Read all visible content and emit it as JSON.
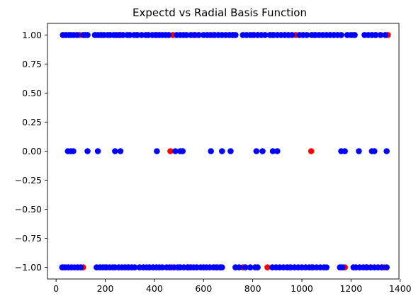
{
  "chart_data": {
    "type": "scatter",
    "title": "Expectd vs Radial Basis Function",
    "xlabel": "",
    "ylabel": "",
    "xlim": [
      -35,
      1395
    ],
    "ylim": [
      -1.1,
      1.1
    ],
    "xticks": [
      0,
      200,
      400,
      600,
      800,
      1000,
      1200,
      1400
    ],
    "xtick_labels": [
      "0",
      "200",
      "400",
      "600",
      "800",
      "1000",
      "1200",
      "1400"
    ],
    "yticks": [
      1.0,
      0.75,
      0.5,
      0.25,
      0.0,
      -0.25,
      -0.5,
      -0.75,
      -1.0
    ],
    "ytick_labels": [
      "1.00",
      "0.75",
      "0.50",
      "0.25",
      "0.00",
      "−0.25",
      "−0.50",
      "−0.75",
      "−1.00"
    ],
    "grid": false,
    "series": [
      {
        "color": "#ff0000",
        "points": [
          [
            28,
            1
          ],
          [
            95,
            1
          ],
          [
            180,
            1
          ],
          [
            255,
            1
          ],
          [
            330,
            1
          ],
          [
            410,
            1
          ],
          [
            475,
            1
          ],
          [
            560,
            1
          ],
          [
            640,
            1
          ],
          [
            720,
            1
          ],
          [
            800,
            1
          ],
          [
            880,
            1
          ],
          [
            975,
            1
          ],
          [
            1050,
            1
          ],
          [
            1130,
            1
          ],
          [
            1210,
            1
          ],
          [
            1300,
            1
          ],
          [
            1350,
            1
          ],
          [
            465,
            0
          ],
          [
            1038,
            0
          ],
          [
            30,
            -1
          ],
          [
            110,
            -1
          ],
          [
            200,
            -1
          ],
          [
            290,
            -1
          ],
          [
            380,
            -1
          ],
          [
            470,
            -1
          ],
          [
            540,
            -1
          ],
          [
            650,
            -1
          ],
          [
            760,
            -1
          ],
          [
            860,
            -1
          ],
          [
            950,
            -1
          ],
          [
            1040,
            -1
          ],
          [
            1175,
            -1
          ],
          [
            1260,
            -1
          ],
          [
            1335,
            -1
          ]
        ]
      },
      {
        "color": "#0000ff",
        "points": [
          [
            28,
            1
          ],
          [
            40,
            1
          ],
          [
            52,
            1
          ],
          [
            60,
            1
          ],
          [
            72,
            1
          ],
          [
            85,
            1
          ],
          [
            110,
            1
          ],
          [
            118,
            1
          ],
          [
            128,
            1
          ],
          [
            158,
            1
          ],
          [
            170,
            1
          ],
          [
            185,
            1
          ],
          [
            195,
            1
          ],
          [
            210,
            1
          ],
          [
            220,
            1
          ],
          [
            235,
            1
          ],
          [
            245,
            1
          ],
          [
            260,
            1
          ],
          [
            272,
            1
          ],
          [
            290,
            1
          ],
          [
            300,
            1
          ],
          [
            318,
            1
          ],
          [
            330,
            1
          ],
          [
            348,
            1
          ],
          [
            365,
            1
          ],
          [
            375,
            1
          ],
          [
            392,
            1
          ],
          [
            405,
            1
          ],
          [
            420,
            1
          ],
          [
            432,
            1
          ],
          [
            445,
            1
          ],
          [
            458,
            1
          ],
          [
            490,
            1
          ],
          [
            505,
            1
          ],
          [
            518,
            1
          ],
          [
            530,
            1
          ],
          [
            548,
            1
          ],
          [
            565,
            1
          ],
          [
            580,
            1
          ],
          [
            600,
            1
          ],
          [
            615,
            1
          ],
          [
            628,
            1
          ],
          [
            645,
            1
          ],
          [
            660,
            1
          ],
          [
            675,
            1
          ],
          [
            690,
            1
          ],
          [
            705,
            1
          ],
          [
            718,
            1
          ],
          [
            730,
            1
          ],
          [
            760,
            1
          ],
          [
            775,
            1
          ],
          [
            790,
            1
          ],
          [
            805,
            1
          ],
          [
            820,
            1
          ],
          [
            835,
            1
          ],
          [
            850,
            1
          ],
          [
            870,
            1
          ],
          [
            885,
            1
          ],
          [
            900,
            1
          ],
          [
            915,
            1
          ],
          [
            930,
            1
          ],
          [
            945,
            1
          ],
          [
            960,
            1
          ],
          [
            990,
            1
          ],
          [
            1005,
            1
          ],
          [
            1020,
            1
          ],
          [
            1040,
            1
          ],
          [
            1055,
            1
          ],
          [
            1070,
            1
          ],
          [
            1085,
            1
          ],
          [
            1100,
            1
          ],
          [
            1115,
            1
          ],
          [
            1130,
            1
          ],
          [
            1145,
            1
          ],
          [
            1160,
            1
          ],
          [
            1185,
            1
          ],
          [
            1200,
            1
          ],
          [
            1215,
            1
          ],
          [
            1255,
            1
          ],
          [
            1270,
            1
          ],
          [
            1285,
            1
          ],
          [
            1300,
            1
          ],
          [
            1320,
            1
          ],
          [
            1340,
            1
          ],
          [
            48,
            0
          ],
          [
            60,
            0
          ],
          [
            70,
            0
          ],
          [
            128,
            0
          ],
          [
            170,
            0
          ],
          [
            240,
            0
          ],
          [
            262,
            0
          ],
          [
            410,
            0
          ],
          [
            485,
            0
          ],
          [
            505,
            0
          ],
          [
            515,
            0
          ],
          [
            630,
            0
          ],
          [
            675,
            0
          ],
          [
            710,
            0
          ],
          [
            815,
            0
          ],
          [
            840,
            0
          ],
          [
            882,
            0
          ],
          [
            900,
            0
          ],
          [
            1160,
            0
          ],
          [
            1175,
            0
          ],
          [
            1232,
            0
          ],
          [
            1285,
            0
          ],
          [
            1295,
            0
          ],
          [
            1345,
            0
          ],
          [
            25,
            -1
          ],
          [
            38,
            -1
          ],
          [
            50,
            -1
          ],
          [
            62,
            -1
          ],
          [
            75,
            -1
          ],
          [
            88,
            -1
          ],
          [
            100,
            -1
          ],
          [
            165,
            -1
          ],
          [
            178,
            -1
          ],
          [
            190,
            -1
          ],
          [
            205,
            -1
          ],
          [
            218,
            -1
          ],
          [
            230,
            -1
          ],
          [
            240,
            -1
          ],
          [
            255,
            -1
          ],
          [
            268,
            -1
          ],
          [
            280,
            -1
          ],
          [
            295,
            -1
          ],
          [
            308,
            -1
          ],
          [
            320,
            -1
          ],
          [
            340,
            -1
          ],
          [
            355,
            -1
          ],
          [
            368,
            -1
          ],
          [
            380,
            -1
          ],
          [
            395,
            -1
          ],
          [
            408,
            -1
          ],
          [
            420,
            -1
          ],
          [
            432,
            -1
          ],
          [
            450,
            -1
          ],
          [
            462,
            -1
          ],
          [
            480,
            -1
          ],
          [
            495,
            -1
          ],
          [
            505,
            -1
          ],
          [
            520,
            -1
          ],
          [
            535,
            -1
          ],
          [
            548,
            -1
          ],
          [
            560,
            -1
          ],
          [
            572,
            -1
          ],
          [
            588,
            -1
          ],
          [
            600,
            -1
          ],
          [
            612,
            -1
          ],
          [
            625,
            -1
          ],
          [
            640,
            -1
          ],
          [
            655,
            -1
          ],
          [
            668,
            -1
          ],
          [
            675,
            -1
          ],
          [
            730,
            -1
          ],
          [
            745,
            -1
          ],
          [
            770,
            -1
          ],
          [
            790,
            -1
          ],
          [
            810,
            -1
          ],
          [
            820,
            -1
          ],
          [
            880,
            -1
          ],
          [
            895,
            -1
          ],
          [
            910,
            -1
          ],
          [
            925,
            -1
          ],
          [
            940,
            -1
          ],
          [
            955,
            -1
          ],
          [
            970,
            -1
          ],
          [
            985,
            -1
          ],
          [
            1000,
            -1
          ],
          [
            1015,
            -1
          ],
          [
            1030,
            -1
          ],
          [
            1045,
            -1
          ],
          [
            1060,
            -1
          ],
          [
            1075,
            -1
          ],
          [
            1090,
            -1
          ],
          [
            1100,
            -1
          ],
          [
            1155,
            -1
          ],
          [
            1165,
            -1
          ],
          [
            1210,
            -1
          ],
          [
            1220,
            -1
          ],
          [
            1235,
            -1
          ],
          [
            1250,
            -1
          ],
          [
            1265,
            -1
          ],
          [
            1280,
            -1
          ],
          [
            1295,
            -1
          ],
          [
            1310,
            -1
          ],
          [
            1325,
            -1
          ],
          [
            1345,
            -1
          ]
        ]
      }
    ]
  }
}
